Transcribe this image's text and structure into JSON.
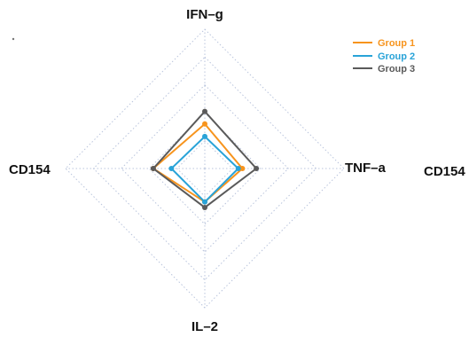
{
  "chart_data": {
    "type": "radar",
    "title": "",
    "axes": [
      "IFN–g",
      "TNF–a",
      "IL–2",
      "CD154"
    ],
    "extra_labels": [
      "CD154"
    ],
    "range": [
      0,
      1
    ],
    "rings": 5,
    "grid": true,
    "legend_position": "top-right",
    "series": [
      {
        "name": "Group 1",
        "color": "#f7941d",
        "values": [
          0.32,
          0.27,
          0.24,
          0.37
        ]
      },
      {
        "name": "Group 2",
        "color": "#29a3d8",
        "values": [
          0.23,
          0.24,
          0.24,
          0.24
        ]
      },
      {
        "name": "Group 3",
        "color": "#5a5a5a",
        "values": [
          0.41,
          0.37,
          0.28,
          0.37
        ]
      }
    ]
  }
}
